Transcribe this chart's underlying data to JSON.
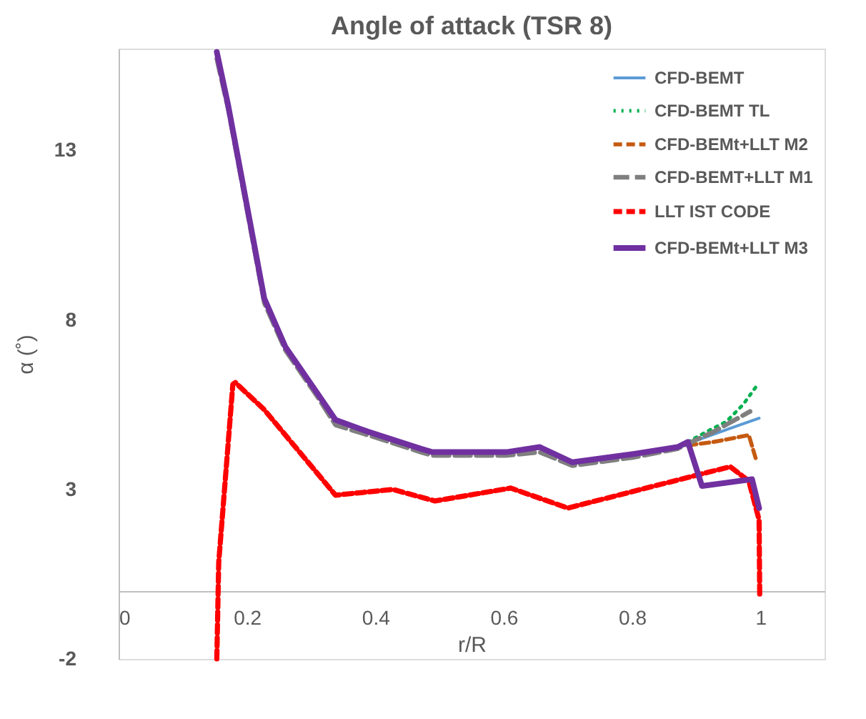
{
  "chart_data": {
    "type": "line",
    "title": "Angle of attack (TSR 8)",
    "xlabel": "r/R",
    "ylabel": "α (˚)",
    "xlim": [
      0,
      1.1
    ],
    "xticks": [
      0,
      0.2,
      0.4,
      0.6,
      0.8,
      1
    ],
    "ylim": [
      -2,
      16
    ],
    "yticks": [
      -2,
      3,
      8,
      13
    ],
    "grid": false,
    "legend": "top right",
    "marker": "none",
    "series": [
      {
        "name": "CFD-BEMT",
        "color": "#5b9bd5",
        "line_style": "solid",
        "x": [
          0.887,
          0.938,
          0.998
        ],
        "values": [
          4.35,
          4.7,
          5.1
        ]
      },
      {
        "name": "CFD-BEMT TL",
        "color": "#00b050",
        "line_style": "dotted",
        "x": [
          0.887,
          0.916,
          0.947,
          0.973,
          0.996
        ],
        "values": [
          4.4,
          4.7,
          5.0,
          5.5,
          6.1
        ]
      },
      {
        "name": "CFD-BEMt+LLT M2",
        "color": "#c55a11",
        "line_style": "dashed",
        "x": [
          0.887,
          0.927,
          0.982,
          0.993
        ],
        "values": [
          4.3,
          4.4,
          4.6,
          3.9
        ]
      },
      {
        "name": "CFD-BEMT+LLT M1",
        "color": "#7f7f7f",
        "line_style": "longdash",
        "x": [
          0.153,
          0.171,
          0.227,
          0.26,
          0.311,
          0.338,
          0.389,
          0.471,
          0.489,
          0.604,
          0.656,
          0.707,
          0.804,
          0.871,
          0.887,
          0.927,
          0.984
        ],
        "values": [
          15.7,
          14.2,
          8.5,
          7.1,
          5.7,
          4.9,
          4.6,
          4.1,
          4.0,
          4.0,
          4.1,
          3.7,
          3.95,
          4.2,
          4.35,
          4.7,
          5.3
        ]
      },
      {
        "name": "LLT IST CODE",
        "color": "#ff0000",
        "line_style": "dashed",
        "x": [
          0.153,
          0.156,
          0.178,
          0.182,
          0.227,
          0.338,
          0.427,
          0.493,
          0.611,
          0.7,
          0.909,
          0.953,
          0.982,
          0.998,
          0.999
        ],
        "values": [
          -2,
          0.85,
          6.1,
          6.15,
          5.35,
          2.83,
          3.0,
          2.66,
          3.04,
          2.45,
          3.46,
          3.67,
          3.25,
          2.1,
          -0.2
        ]
      },
      {
        "name": "CFD-BEMt+LLT M3",
        "color": "#7030a0",
        "line_style": "solid",
        "x": [
          0.153,
          0.171,
          0.227,
          0.26,
          0.311,
          0.338,
          0.389,
          0.471,
          0.489,
          0.604,
          0.656,
          0.707,
          0.804,
          0.871,
          0.887,
          0.909,
          0.987,
          0.998
        ],
        "values": [
          15.9,
          14.3,
          8.63,
          7.2,
          5.8,
          5.05,
          4.7,
          4.2,
          4.1,
          4.1,
          4.25,
          3.8,
          4.05,
          4.25,
          4.4,
          3.1,
          3.3,
          2.45
        ]
      }
    ]
  }
}
